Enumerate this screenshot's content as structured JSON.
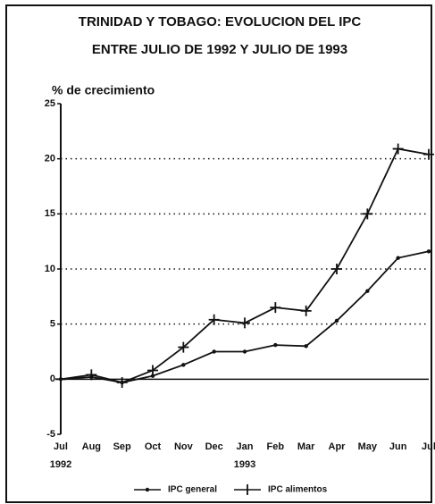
{
  "chart_data": {
    "type": "line",
    "title": [
      "TRINIDAD Y TOBAGO: EVOLUCION DEL IPC",
      "ENTRE JULIO DE 1992 Y JULIO DE 1993"
    ],
    "y_label": "% de crecimiento",
    "categories": [
      "Jul",
      "Aug",
      "Sep",
      "Oct",
      "Nov",
      "Dec",
      "Jan",
      "Feb",
      "Mar",
      "Apr",
      "May",
      "Jun",
      "Jul"
    ],
    "category_years": [
      "1992",
      null,
      null,
      null,
      null,
      null,
      "1993",
      null,
      null,
      null,
      null,
      null,
      null
    ],
    "series": [
      {
        "name": "IPC general",
        "color": "#111111",
        "marker": "dot",
        "values": [
          0,
          0.2,
          -0.3,
          0.3,
          1.3,
          2.5,
          2.5,
          3.1,
          3.0,
          5.3,
          8.0,
          11.0,
          11.6
        ]
      },
      {
        "name": "IPC alimentos",
        "color": "#111111",
        "marker": "plus",
        "values": [
          0,
          0.4,
          -0.3,
          0.8,
          2.9,
          5.4,
          5.1,
          6.5,
          6.2,
          10.0,
          15.0,
          20.9,
          20.4
        ]
      }
    ],
    "ylim": [
      -5,
      25
    ],
    "yticks": [
      -5,
      0,
      5,
      10,
      15,
      20,
      25
    ],
    "grid": true
  }
}
